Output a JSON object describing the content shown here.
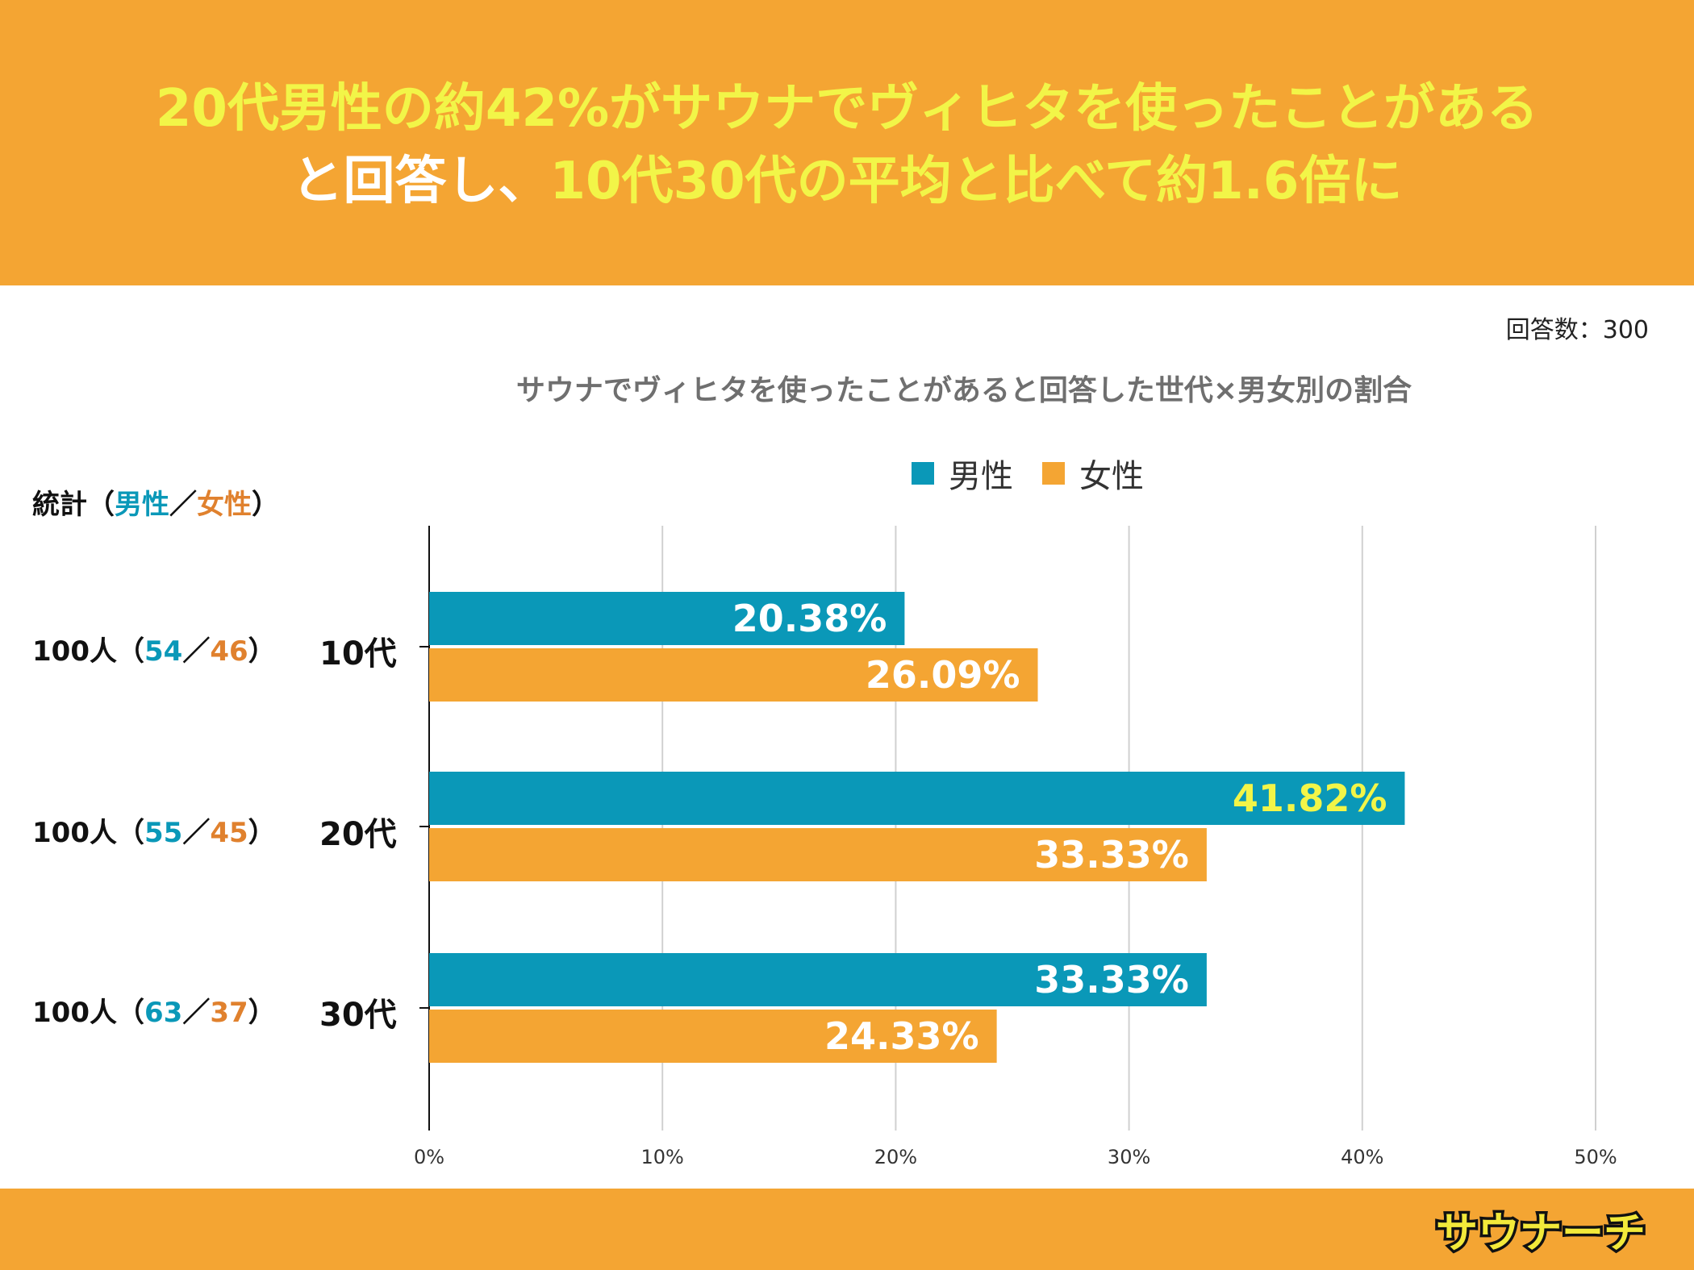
{
  "header": {
    "line1": "20代男性の約42%がサウナでヴィヒタを使ったことがある",
    "line2_white": "と回答し、",
    "line2_yellow": "10代30代の平均と比べて約1.6倍に"
  },
  "respondents": "回答数：300",
  "stats_header": {
    "prefix": "統計（",
    "male": "男性",
    "sep": "／",
    "female": "女性",
    "suffix": "）"
  },
  "stats": [
    {
      "total": "100人（",
      "male": "54",
      "sep": "／",
      "female": "46",
      "close": "）"
    },
    {
      "total": "100人（",
      "male": "55",
      "sep": "／",
      "female": "45",
      "close": "）"
    },
    {
      "total": "100人（",
      "male": "63",
      "sep": "／",
      "female": "37",
      "close": "）"
    }
  ],
  "colors": {
    "header_bg": "#F4A533",
    "headline_yellow": "#F2F548",
    "male": "#0A98B8",
    "female": "#F4A533",
    "female_text": "#E0812E",
    "highlight_label": "#F2F548"
  },
  "logo": {
    "text": "サウナーチ",
    "icon": "sauna-hat-logo"
  },
  "chart_data": {
    "type": "bar",
    "orientation": "horizontal",
    "title": "サウナでヴィヒタを使ったことがあると回答した世代×男女別の割合",
    "categories": [
      "10代",
      "20代",
      "30代"
    ],
    "series": [
      {
        "name": "男性",
        "values": [
          20.38,
          41.82,
          33.33
        ],
        "labels": [
          "20.38%",
          "41.82%",
          "33.33%"
        ]
      },
      {
        "name": "女性",
        "values": [
          26.09,
          33.33,
          24.33
        ],
        "labels": [
          "26.09%",
          "33.33%",
          "24.33%"
        ]
      }
    ],
    "xlim": [
      0,
      50
    ],
    "ticks": [
      "0%",
      "10%",
      "20%",
      "30%",
      "40%",
      "50%"
    ],
    "grid": true,
    "legend": "top",
    "highlight": {
      "series": 0,
      "category": 1
    }
  }
}
